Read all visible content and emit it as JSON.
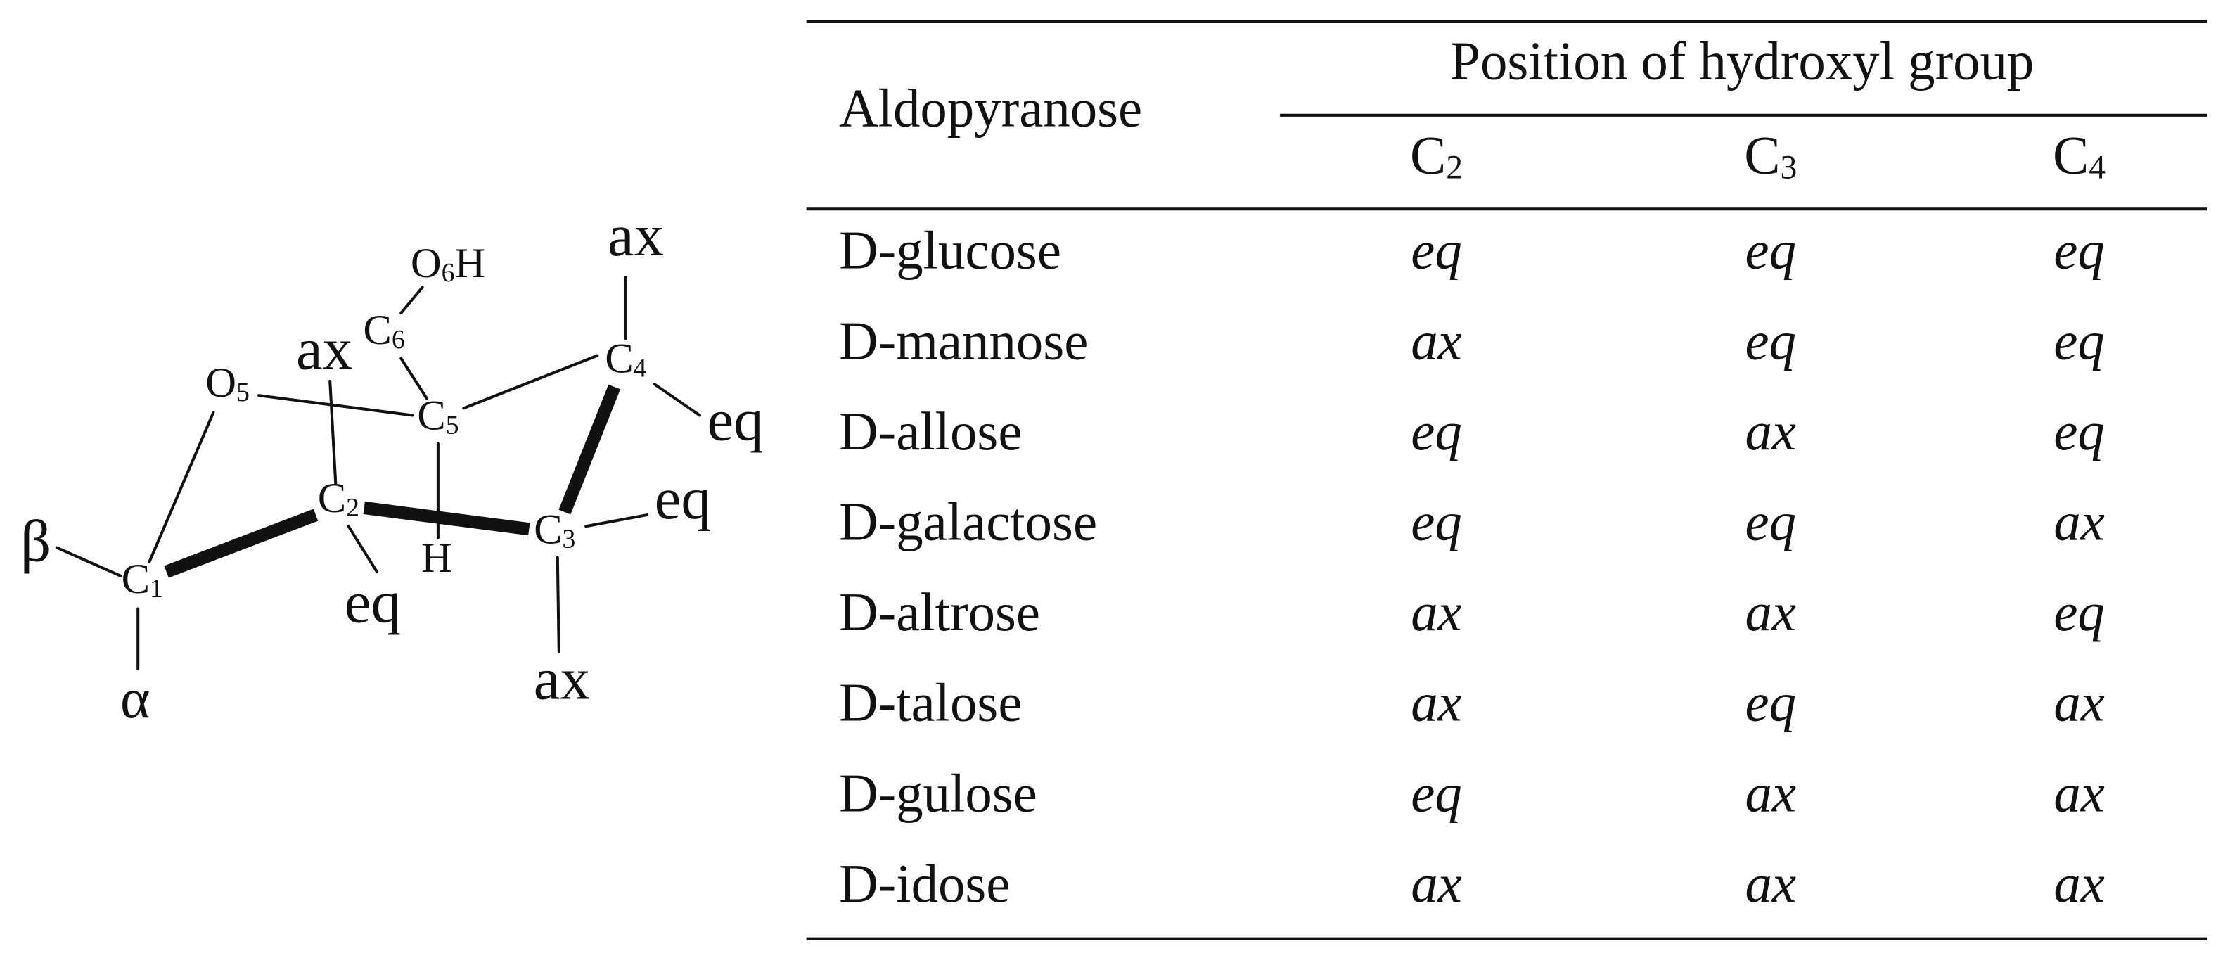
{
  "diagram": {
    "labels": [
      {
        "symbol": "β"
      },
      {
        "symbol": "C",
        "sub": "1"
      },
      {
        "symbol": "α"
      },
      {
        "symbol": "O",
        "sub": "5"
      },
      {
        "symbol": "ax"
      },
      {
        "symbol": "C",
        "sub": "2"
      },
      {
        "symbol": "eq"
      },
      {
        "symbol": "C",
        "sub": "6"
      },
      {
        "symbol": "O",
        "sub": "6",
        "suffix": "H"
      },
      {
        "symbol": "C",
        "sub": "5"
      },
      {
        "symbol": "H"
      },
      {
        "symbol": "C",
        "sub": "3"
      },
      {
        "symbol": "eq"
      },
      {
        "symbol": "ax"
      },
      {
        "symbol": "C",
        "sub": "4"
      },
      {
        "symbol": "ax"
      },
      {
        "symbol": "eq"
      }
    ]
  },
  "table": {
    "header": {
      "row_label": "Aldopyranose",
      "group": "Position of hydroxyl group",
      "columns": [
        {
          "symbol": "C",
          "sub": "2"
        },
        {
          "symbol": "C",
          "sub": "3"
        },
        {
          "symbol": "C",
          "sub": "4"
        }
      ]
    },
    "rows": [
      [
        "D-glucose",
        "eq",
        "eq",
        "eq"
      ],
      [
        "D-mannose",
        "ax",
        "eq",
        "eq"
      ],
      [
        "D-allose",
        "eq",
        "ax",
        "eq"
      ],
      [
        "D-galactose",
        "eq",
        "eq",
        "ax"
      ],
      [
        "D-altrose",
        "ax",
        "ax",
        "eq"
      ],
      [
        "D-talose",
        "ax",
        "eq",
        "ax"
      ],
      [
        "D-gulose",
        "eq",
        "ax",
        "ax"
      ],
      [
        "D-idose",
        "ax",
        "ax",
        "ax"
      ]
    ]
  }
}
